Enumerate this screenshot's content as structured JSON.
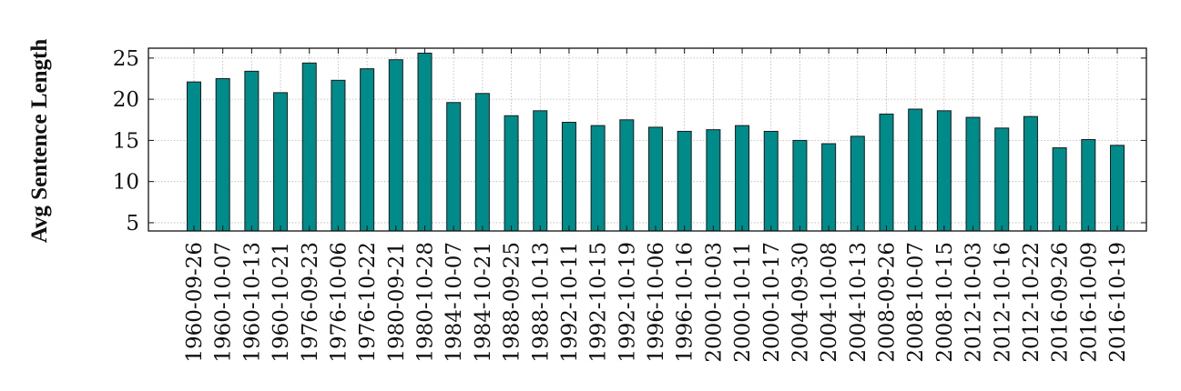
{
  "chart_data": {
    "type": "bar",
    "title": "",
    "xlabel": "",
    "ylabel": "Avg Sentence Length",
    "categories": [
      "1960-09-26",
      "1960-10-07",
      "1960-10-13",
      "1960-10-21",
      "1976-09-23",
      "1976-10-06",
      "1976-10-22",
      "1980-09-21",
      "1980-10-28",
      "1984-10-07",
      "1984-10-21",
      "1988-09-25",
      "1988-10-13",
      "1992-10-11",
      "1992-10-15",
      "1992-10-19",
      "1996-10-06",
      "1996-10-16",
      "2000-10-03",
      "2000-10-11",
      "2000-10-17",
      "2004-09-30",
      "2004-10-08",
      "2004-10-13",
      "2008-09-26",
      "2008-10-07",
      "2008-10-15",
      "2012-10-03",
      "2012-10-16",
      "2012-10-22",
      "2016-09-26",
      "2016-10-09",
      "2016-10-19"
    ],
    "values": [
      22.1,
      22.5,
      23.4,
      20.8,
      24.4,
      22.3,
      23.7,
      24.8,
      25.6,
      19.6,
      20.7,
      18.0,
      18.6,
      17.2,
      16.8,
      17.5,
      16.6,
      16.1,
      16.3,
      16.8,
      16.1,
      15.0,
      14.6,
      15.5,
      18.2,
      18.8,
      18.6,
      17.8,
      16.5,
      17.9,
      14.1,
      15.1,
      14.4
    ],
    "yticks": [
      5,
      10,
      15,
      20,
      25
    ],
    "ylim": [
      4,
      26.2
    ],
    "grid": true,
    "legend": "none",
    "bar_color": "#008b8b",
    "bar_edge_color": "#1a1a1a"
  }
}
